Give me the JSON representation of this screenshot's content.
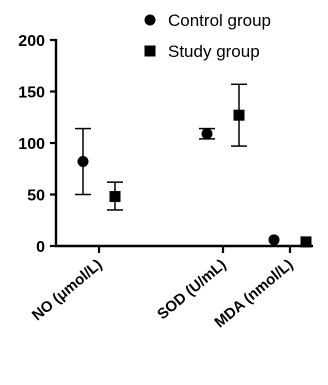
{
  "chart_data": {
    "type": "scatter",
    "title": "",
    "xlabel": "",
    "ylabel": "",
    "categories": [
      "NO (μmol/L)",
      "SOD (U/mL)",
      "MDA (nmol/L)"
    ],
    "ylim": [
      0,
      200
    ],
    "yticks": [
      "0",
      "50",
      "100",
      "150",
      "200"
    ],
    "grid": false,
    "legend_position": "top-right",
    "series": [
      {
        "name": "Control group",
        "marker": "circle",
        "color": "#000000",
        "values": [
          82,
          109,
          6
        ],
        "error_low": [
          50,
          104,
          null
        ],
        "error_high": [
          114,
          114,
          null
        ]
      },
      {
        "name": "Study group",
        "marker": "square",
        "color": "#000000",
        "values": [
          48,
          127,
          4
        ],
        "error_low": [
          35,
          97,
          null
        ],
        "error_high": [
          62,
          157,
          null
        ]
      }
    ]
  }
}
